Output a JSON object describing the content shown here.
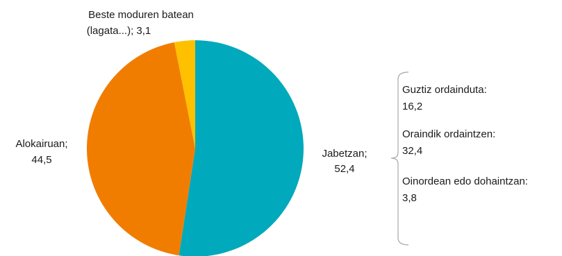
{
  "chart_data": {
    "type": "pie",
    "slices": [
      {
        "name": "Jabetzan",
        "value": 52.4,
        "value_label": "52,4",
        "color": "#00a9bb"
      },
      {
        "name": "Alokairuan",
        "value": 44.5,
        "value_label": "44,5",
        "color": "#f07d00"
      },
      {
        "name": "Beste moduren batean (lagata...)",
        "value": 3.1,
        "value_label": "3,1",
        "color": "#ffc000"
      }
    ],
    "labels": {
      "jabetzan": {
        "name": "Jabetzan;",
        "value": "52,4"
      },
      "alokairuan": {
        "name": "Alokairuan;",
        "value": "44,5"
      },
      "beste": {
        "line1": "Beste moduren batean",
        "line2": "(lagata...); 3,1"
      }
    },
    "breakdown": [
      {
        "name": "Guztiz ordainduta:",
        "value": "16,2"
      },
      {
        "name": "Oraindik ordaintzen:",
        "value": "32,4"
      },
      {
        "name": "Oinordean edo dohaintzan:",
        "value": "3,8"
      }
    ]
  }
}
